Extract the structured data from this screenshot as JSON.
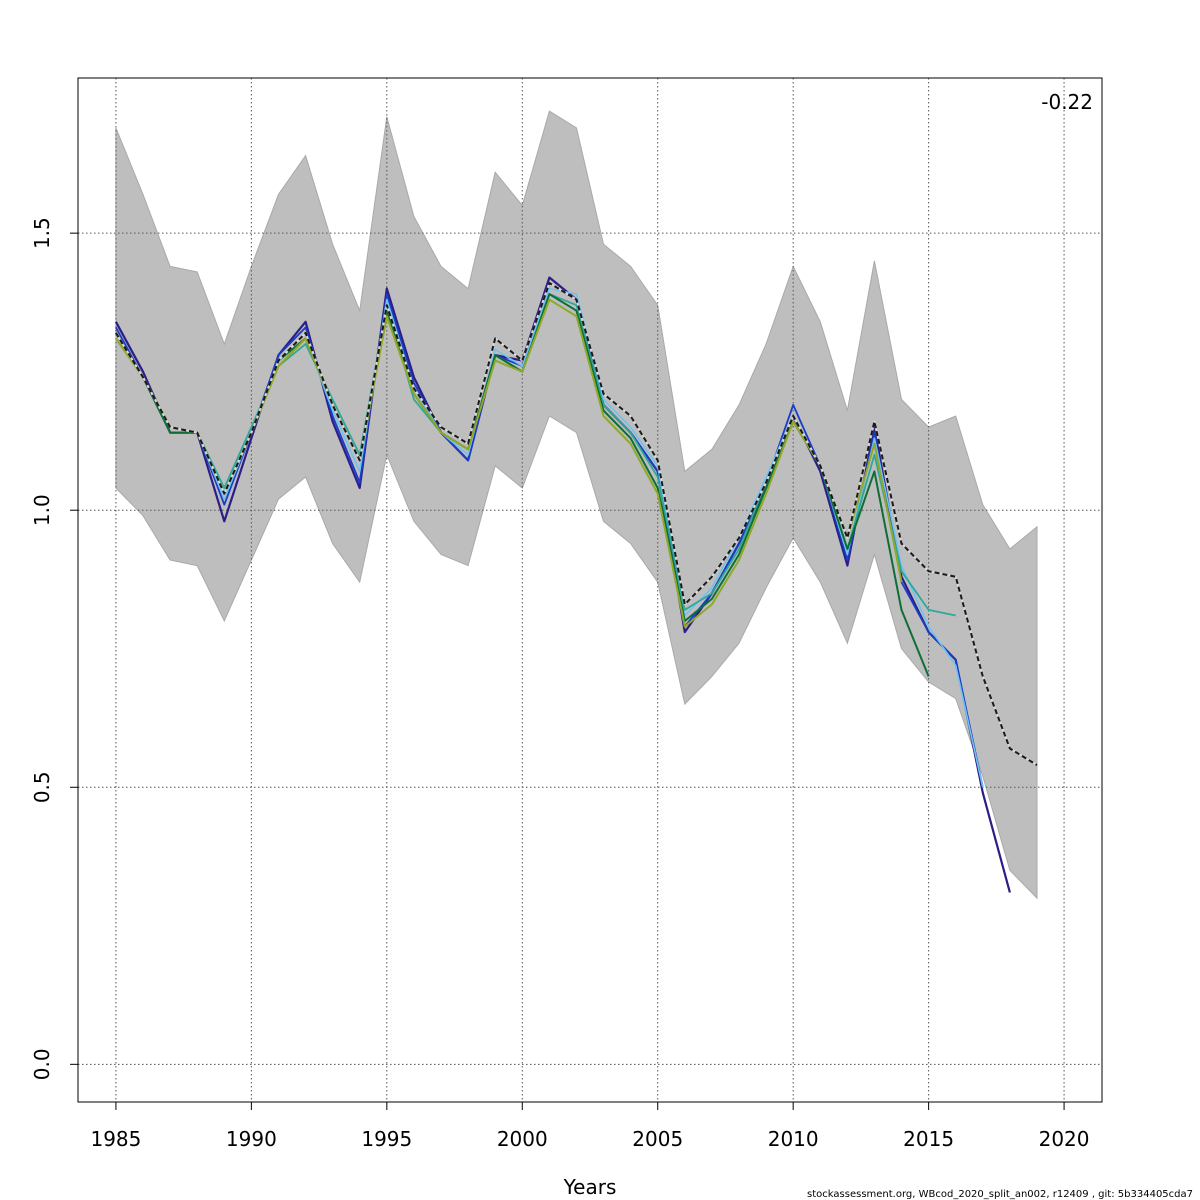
{
  "chart_data": {
    "type": "line",
    "title": "",
    "xlabel": "Years",
    "ylabel": "",
    "corner_label": "-0.22",
    "footer": "stockassessment.org, WBcod_2020_split_an002, r12409 , git: 5b334405cda7",
    "xlim": [
      1983.6,
      2021.4
    ],
    "ylim": [
      -0.068,
      1.78
    ],
    "x_ticks": [
      1985,
      1990,
      1995,
      2000,
      2005,
      2010,
      2015,
      2020
    ],
    "x_tick_labels": [
      "1985",
      "1990",
      "1995",
      "2000",
      "2005",
      "2010",
      "2015",
      "2020"
    ],
    "y_ticks": [
      0.0,
      0.5,
      1.0,
      1.5
    ],
    "y_tick_labels": [
      "0.0",
      "0.5",
      "1.0",
      "1.5"
    ],
    "grid": true,
    "confidence_band": {
      "x": [
        1985,
        1986,
        1987,
        1988,
        1989,
        1990,
        1991,
        1992,
        1993,
        1994,
        1995,
        1996,
        1997,
        1998,
        1999,
        2000,
        2001,
        2002,
        2003,
        2004,
        2005,
        2006,
        2007,
        2008,
        2009,
        2010,
        2011,
        2012,
        2013,
        2014,
        2015,
        2016,
        2017,
        2018,
        2019
      ],
      "upper": [
        1.69,
        1.57,
        1.44,
        1.43,
        1.3,
        1.44,
        1.57,
        1.64,
        1.48,
        1.36,
        1.71,
        1.53,
        1.44,
        1.4,
        1.61,
        1.55,
        1.72,
        1.69,
        1.48,
        1.44,
        1.37,
        1.07,
        1.11,
        1.19,
        1.3,
        1.44,
        1.34,
        1.18,
        1.45,
        1.2,
        1.15,
        1.17,
        1.01,
        0.93,
        0.97
      ],
      "lower": [
        1.04,
        0.99,
        0.91,
        0.9,
        0.8,
        0.91,
        1.02,
        1.06,
        0.94,
        0.87,
        1.1,
        0.98,
        0.92,
        0.9,
        1.08,
        1.04,
        1.17,
        1.14,
        0.98,
        0.94,
        0.87,
        0.65,
        0.7,
        0.76,
        0.86,
        0.95,
        0.87,
        0.76,
        0.92,
        0.75,
        0.69,
        0.66,
        0.52,
        0.35,
        0.3
      ],
      "color": "#bebebe"
    },
    "series": [
      {
        "color": "#2b1e86",
        "width": 2.2,
        "dashed": false,
        "x": [
          1985,
          1986,
          1987,
          1988,
          1989,
          1990,
          1991,
          1992,
          1993,
          1994,
          1995,
          1996,
          1997,
          1998,
          1999,
          2000,
          2001,
          2002,
          2003,
          2004,
          2005,
          2006,
          2007,
          2008,
          2009,
          2010,
          2011,
          2012,
          2013,
          2014,
          2015,
          2016,
          2017,
          2018
        ],
        "values": [
          1.34,
          1.25,
          1.14,
          1.14,
          0.98,
          1.13,
          1.28,
          1.34,
          1.16,
          1.04,
          1.4,
          1.24,
          1.14,
          1.09,
          1.28,
          1.27,
          1.42,
          1.38,
          1.19,
          1.14,
          1.07,
          0.78,
          0.85,
          0.94,
          1.04,
          1.17,
          1.07,
          0.9,
          1.15,
          0.88,
          0.78,
          0.73,
          0.49,
          0.31
        ]
      },
      {
        "color": "#1a3cc8",
        "width": 1.8,
        "dashed": false,
        "x": [
          1985,
          1986,
          1987,
          1988,
          1989,
          1990,
          1991,
          1992,
          1993,
          1994,
          1995,
          1996,
          1997,
          1998,
          1999,
          2000,
          2001,
          2002,
          2003,
          2004,
          2005,
          2006,
          2007,
          2008,
          2009,
          2010,
          2011,
          2012,
          2013,
          2014,
          2015,
          2016,
          2017
        ],
        "values": [
          1.33,
          1.24,
          1.14,
          1.14,
          1.01,
          1.14,
          1.28,
          1.33,
          1.17,
          1.05,
          1.39,
          1.23,
          1.14,
          1.09,
          1.28,
          1.26,
          1.41,
          1.38,
          1.19,
          1.14,
          1.07,
          0.79,
          0.85,
          0.94,
          1.05,
          1.19,
          1.08,
          0.91,
          1.14,
          0.87,
          0.78,
          0.73,
          0.5
        ]
      },
      {
        "color": "#6ec3f0",
        "width": 1.6,
        "dashed": false,
        "x": [
          1985,
          1986,
          1987,
          1988,
          1989,
          1990,
          1991,
          1992,
          1993,
          1994,
          1995,
          1996,
          1997,
          1998,
          1999,
          2000,
          2001,
          2002,
          2003,
          2004,
          2005,
          2006,
          2007,
          2008,
          2009,
          2010,
          2011,
          2012,
          2013,
          2014,
          2015,
          2016,
          2017
        ],
        "values": [
          1.32,
          1.24,
          1.14,
          1.14,
          1.02,
          1.14,
          1.27,
          1.31,
          1.18,
          1.07,
          1.38,
          1.22,
          1.14,
          1.1,
          1.29,
          1.26,
          1.4,
          1.39,
          1.2,
          1.15,
          1.08,
          0.81,
          0.86,
          0.95,
          1.06,
          1.17,
          1.08,
          0.92,
          1.13,
          0.9,
          0.79,
          0.72,
          0.5
        ]
      },
      {
        "color": "#2fa89a",
        "width": 1.8,
        "dashed": false,
        "x": [
          1985,
          1986,
          1987,
          1988,
          1989,
          1990,
          1991,
          1992,
          1993,
          1994,
          1995,
          1996,
          1997,
          1998,
          1999,
          2000,
          2001,
          2002,
          2003,
          2004,
          2005,
          2006,
          2007,
          2008,
          2009,
          2010,
          2011,
          2012,
          2013,
          2014,
          2015,
          2016
        ],
        "values": [
          1.32,
          1.24,
          1.15,
          1.14,
          1.04,
          1.15,
          1.26,
          1.3,
          1.2,
          1.1,
          1.37,
          1.2,
          1.14,
          1.11,
          1.28,
          1.25,
          1.39,
          1.37,
          1.19,
          1.14,
          1.06,
          0.82,
          0.85,
          0.93,
          1.05,
          1.16,
          1.08,
          0.93,
          1.1,
          0.89,
          0.82,
          0.81
        ]
      },
      {
        "color": "#0f6e37",
        "width": 2.0,
        "dashed": false,
        "x": [
          1985,
          1986,
          1987,
          1988,
          1989,
          1990,
          1991,
          1992,
          1993,
          1994,
          1995,
          1996,
          1997,
          1998,
          1999,
          2000,
          2001,
          2002,
          2003,
          2004,
          2005,
          2006,
          2007,
          2008,
          2009,
          2010,
          2011,
          2012,
          2013,
          2014,
          2015
        ],
        "values": [
          1.32,
          1.24,
          1.14,
          1.14,
          1.03,
          1.14,
          1.27,
          1.31,
          1.19,
          1.09,
          1.36,
          1.21,
          1.14,
          1.11,
          1.28,
          1.25,
          1.39,
          1.36,
          1.18,
          1.13,
          1.04,
          0.8,
          0.84,
          0.92,
          1.04,
          1.16,
          1.08,
          0.93,
          1.07,
          0.82,
          0.7
        ]
      },
      {
        "color": "#8fa828",
        "width": 2.0,
        "dashed": false,
        "x": [
          1985,
          1986,
          1987,
          1988,
          1989,
          1990,
          1991,
          1992,
          1993,
          1994,
          1995,
          1996,
          1997,
          1998,
          1999,
          2000,
          2001,
          2002,
          2003,
          2004,
          2005,
          2006,
          2007,
          2008,
          2009,
          2010,
          2011,
          2012,
          2013,
          2014
        ],
        "values": [
          1.31,
          1.24,
          1.15,
          1.14,
          1.03,
          1.14,
          1.26,
          1.31,
          1.19,
          1.09,
          1.35,
          1.21,
          1.14,
          1.11,
          1.27,
          1.25,
          1.38,
          1.35,
          1.17,
          1.12,
          1.03,
          0.79,
          0.83,
          0.91,
          1.03,
          1.16,
          1.08,
          0.95,
          1.12,
          0.87
        ]
      },
      {
        "color": "#1a1a1a",
        "width": 2.0,
        "dashed": true,
        "x": [
          1985,
          1986,
          1987,
          1988,
          1989,
          1990,
          1991,
          1992,
          1993,
          1994,
          1995,
          1996,
          1997,
          1998,
          1999,
          2000,
          2001,
          2002,
          2003,
          2004,
          2005,
          2006,
          2007,
          2008,
          2009,
          2010,
          2011,
          2012,
          2013,
          2014,
          2015,
          2016,
          2017,
          2018,
          2019
        ],
        "values": [
          1.32,
          1.24,
          1.15,
          1.14,
          1.03,
          1.14,
          1.27,
          1.32,
          1.19,
          1.09,
          1.37,
          1.22,
          1.15,
          1.12,
          1.31,
          1.27,
          1.41,
          1.38,
          1.21,
          1.17,
          1.09,
          0.83,
          0.88,
          0.95,
          1.05,
          1.17,
          1.08,
          0.95,
          1.16,
          0.94,
          0.89,
          0.88,
          0.7,
          0.57,
          0.54
        ]
      }
    ]
  }
}
